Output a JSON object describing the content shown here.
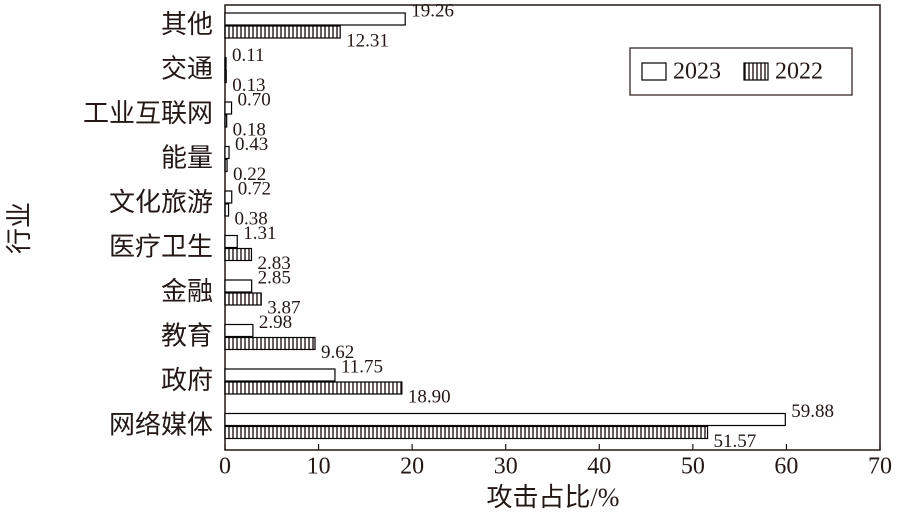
{
  "chart_data": {
    "type": "barh",
    "xlabel": "攻击占比/%",
    "ylabel": "行业",
    "categories": [
      "其他",
      "交通",
      "工业互联网",
      "能量",
      "文化旅游",
      "医疗卫生",
      "金融",
      "教育",
      "政府",
      "网络媒体"
    ],
    "series": [
      {
        "name": "2023",
        "color": "#000000",
        "hatch": false,
        "values": [
          19.26,
          0.11,
          0.7,
          0.43,
          0.72,
          1.31,
          2.85,
          2.98,
          11.75,
          59.88
        ],
        "value_labels": [
          "19.26",
          "0.11",
          "0.70",
          "0.43",
          "0.72",
          "1.31",
          "2.85",
          "2.98",
          "11.75",
          "59.88"
        ]
      },
      {
        "name": "2022",
        "color": "#000000",
        "hatch": true,
        "values": [
          12.31,
          0.13,
          0.18,
          0.22,
          0.38,
          2.83,
          3.87,
          9.62,
          18.9,
          51.57
        ],
        "value_labels": [
          "12.31",
          "0.13",
          "0.18",
          "0.22",
          "0.38",
          "2.83",
          "3.87",
          "9.62",
          "18.90",
          "51.57"
        ]
      }
    ],
    "xlim": [
      0,
      70
    ],
    "xticks": [
      0,
      10,
      20,
      30,
      40,
      50,
      60,
      70
    ],
    "grid": false,
    "legend": "upper right"
  }
}
